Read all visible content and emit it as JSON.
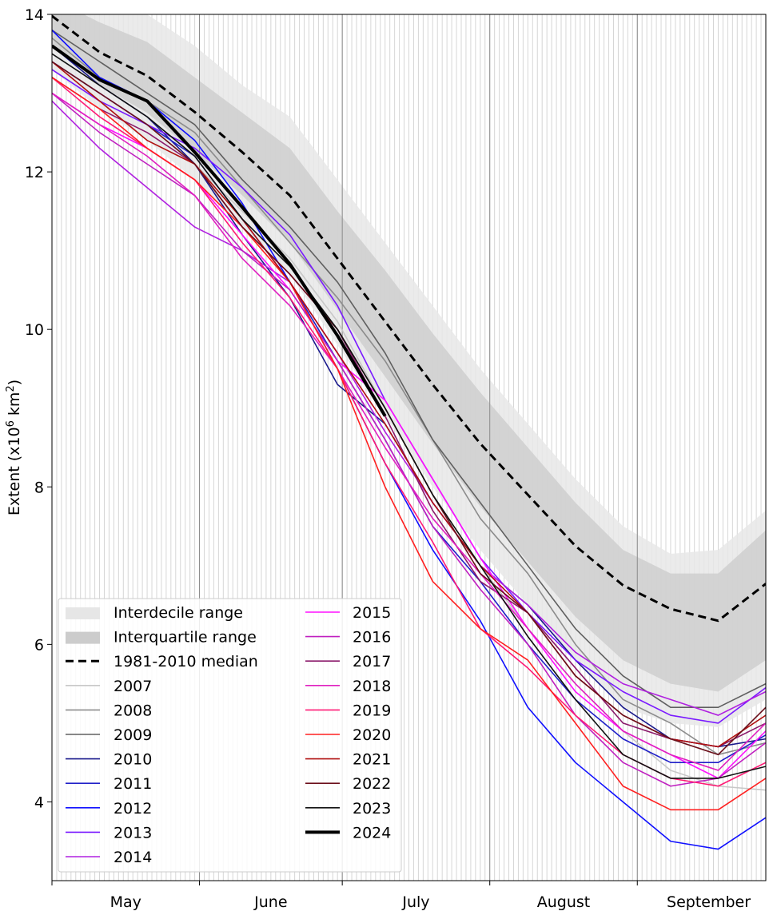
{
  "chart_data": {
    "type": "line",
    "title": "",
    "xlabel": "",
    "ylabel": "Extent (x10",
    "ylabel_sup": "6",
    "ylabel_unit": " km",
    "ylabel_unit_sup": "2",
    "ylabel_close": ")",
    "x_unit": "days since May 1",
    "x": [
      0,
      10,
      20,
      30,
      40,
      50,
      60,
      70,
      80,
      90,
      100,
      110,
      120,
      130,
      140,
      150
    ],
    "xlim": [
      0,
      150
    ],
    "ylim": [
      3,
      14
    ],
    "yticks": [
      4,
      6,
      8,
      10,
      12,
      14
    ],
    "month_labels": [
      {
        "label": "May",
        "start": 0,
        "days": 31
      },
      {
        "label": "June",
        "start": 31,
        "days": 30
      },
      {
        "label": "July",
        "start": 61,
        "days": 31
      },
      {
        "label": "August",
        "start": 92,
        "days": 31
      },
      {
        "label": "September",
        "start": 123,
        "days": 30
      }
    ],
    "grid": "daily vertical lines",
    "legend_position": "bottom-left",
    "bands": [
      {
        "name": "Interdecile range",
        "color": "#e8e8e8",
        "low": [
          13.3,
          12.8,
          12.4,
          11.9,
          11.3,
          10.7,
          9.8,
          8.9,
          8.0,
          7.2,
          6.5,
          5.8,
          5.2,
          5.0,
          4.95,
          5.3
        ],
        "high": [
          14.5,
          14.2,
          14.0,
          13.6,
          13.1,
          12.7,
          11.9,
          11.1,
          10.3,
          9.5,
          8.8,
          8.1,
          7.5,
          7.15,
          7.2,
          7.7
        ]
      },
      {
        "name": "Interquartile range",
        "color": "#cfcfcf",
        "low": [
          13.6,
          13.1,
          12.75,
          12.25,
          11.7,
          11.1,
          10.25,
          9.4,
          8.55,
          7.75,
          7.05,
          6.35,
          5.8,
          5.5,
          5.4,
          5.8
        ],
        "high": [
          14.2,
          13.9,
          13.65,
          13.2,
          12.75,
          12.3,
          11.5,
          10.75,
          9.95,
          9.2,
          8.5,
          7.8,
          7.2,
          6.9,
          6.9,
          7.45
        ]
      }
    ],
    "median": {
      "name": "1981-2010 median",
      "color": "#000000",
      "values": [
        13.98,
        13.52,
        13.22,
        12.76,
        12.25,
        11.7,
        10.9,
        10.1,
        9.3,
        8.55,
        7.9,
        7.25,
        6.75,
        6.45,
        6.3,
        6.77
      ]
    },
    "series": [
      {
        "name": "2007",
        "color": "#c8c8c8",
        "values": [
          13.3,
          12.9,
          12.6,
          12.1,
          11.5,
          10.9,
          10.1,
          9.0,
          7.9,
          7.0,
          6.2,
          5.5,
          4.9,
          4.4,
          4.2,
          4.15
        ]
      },
      {
        "name": "2008",
        "color": "#8c8c8c",
        "values": [
          13.7,
          13.2,
          12.9,
          12.5,
          11.8,
          11.1,
          10.4,
          9.6,
          8.6,
          7.6,
          6.9,
          6.0,
          5.3,
          5.0,
          4.6,
          4.75
        ]
      },
      {
        "name": "2009",
        "color": "#606060",
        "values": [
          13.8,
          13.4,
          13.0,
          12.6,
          11.9,
          11.3,
          10.6,
          9.7,
          8.6,
          7.8,
          7.0,
          6.2,
          5.6,
          5.2,
          5.2,
          5.5
        ]
      },
      {
        "name": "2010",
        "color": "#1a1a8c",
        "values": [
          13.6,
          13.1,
          12.7,
          12.1,
          11.2,
          10.4,
          9.3,
          8.8,
          7.8,
          7.0,
          6.5,
          5.8,
          5.2,
          4.8,
          4.7,
          4.8
        ]
      },
      {
        "name": "2011",
        "color": "#2020c8",
        "values": [
          13.4,
          13.0,
          12.6,
          12.2,
          11.4,
          10.6,
          9.6,
          8.6,
          7.5,
          6.8,
          6.0,
          5.3,
          4.8,
          4.5,
          4.5,
          4.85
        ]
      },
      {
        "name": "2012",
        "color": "#1010ff",
        "values": [
          13.8,
          13.2,
          12.9,
          12.4,
          11.6,
          10.6,
          9.5,
          8.3,
          7.2,
          6.3,
          5.2,
          4.5,
          4.0,
          3.5,
          3.4,
          3.8
        ]
      },
      {
        "name": "2013",
        "color": "#7a1aff",
        "values": [
          13.3,
          12.9,
          12.6,
          12.3,
          11.8,
          11.2,
          10.3,
          9.1,
          8.1,
          7.1,
          6.4,
          5.8,
          5.4,
          5.1,
          5.0,
          5.45
        ]
      },
      {
        "name": "2014",
        "color": "#b020e0",
        "values": [
          12.9,
          12.3,
          11.8,
          11.3,
          11.0,
          10.6,
          9.7,
          8.7,
          7.8,
          7.0,
          6.5,
          5.9,
          5.5,
          5.3,
          5.1,
          5.4
        ]
      },
      {
        "name": "2015",
        "color": "#ff10ff",
        "values": [
          13.0,
          12.6,
          12.3,
          11.9,
          11.2,
          10.5,
          9.6,
          9.1,
          8.1,
          7.1,
          6.2,
          5.4,
          4.9,
          4.6,
          4.3,
          4.9
        ]
      },
      {
        "name": "2016",
        "color": "#c020c0",
        "values": [
          13.0,
          12.5,
          12.1,
          11.7,
          11.0,
          10.5,
          9.6,
          8.6,
          7.5,
          6.7,
          6.0,
          5.1,
          4.5,
          4.2,
          4.3,
          4.75
        ]
      },
      {
        "name": "2017",
        "color": "#8b1a6b",
        "values": [
          13.2,
          12.8,
          12.5,
          12.1,
          11.3,
          10.7,
          10.0,
          8.9,
          7.7,
          6.8,
          6.4,
          5.7,
          5.0,
          4.8,
          4.7,
          5.0
        ]
      },
      {
        "name": "2018",
        "color": "#e020c0",
        "values": [
          13.0,
          12.6,
          12.2,
          11.7,
          10.9,
          10.3,
          9.5,
          8.5,
          7.6,
          6.9,
          6.2,
          5.5,
          4.9,
          4.6,
          4.4,
          5.0
        ]
      },
      {
        "name": "2019",
        "color": "#ff1a75",
        "values": [
          13.2,
          12.7,
          12.3,
          11.9,
          11.1,
          10.4,
          9.5,
          8.3,
          7.3,
          6.2,
          5.7,
          5.1,
          4.6,
          4.3,
          4.2,
          4.5
        ]
      },
      {
        "name": "2020",
        "color": "#ff2020",
        "values": [
          13.2,
          12.8,
          12.3,
          11.9,
          11.3,
          10.6,
          9.5,
          8.0,
          6.8,
          6.2,
          5.8,
          5.0,
          4.2,
          3.9,
          3.9,
          4.3
        ]
      },
      {
        "name": "2021",
        "color": "#b01010",
        "values": [
          13.4,
          12.9,
          12.4,
          12.1,
          11.4,
          10.6,
          9.7,
          8.8,
          7.8,
          7.0,
          6.4,
          5.6,
          5.1,
          4.8,
          4.7,
          5.1
        ]
      },
      {
        "name": "2022",
        "color": "#6b0f1a",
        "values": [
          13.4,
          13.0,
          12.6,
          12.1,
          11.3,
          10.7,
          10.0,
          9.0,
          7.9,
          6.9,
          6.4,
          5.6,
          5.1,
          4.8,
          4.6,
          5.2
        ]
      },
      {
        "name": "2023",
        "color": "#111111",
        "values": [
          13.5,
          13.1,
          12.7,
          12.2,
          11.4,
          10.8,
          10.0,
          9.0,
          7.9,
          7.0,
          6.1,
          5.3,
          4.6,
          4.3,
          4.3,
          4.45
        ]
      },
      {
        "name": "2024",
        "color": "#000000",
        "bold": true,
        "values": [
          13.6,
          13.17,
          12.9,
          12.25,
          11.55,
          10.83,
          9.92,
          8.9,
          null,
          null,
          null,
          null,
          null,
          null,
          null,
          null
        ]
      }
    ]
  }
}
